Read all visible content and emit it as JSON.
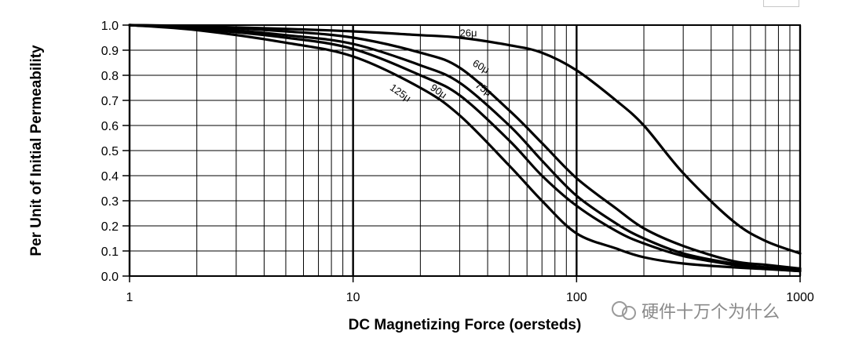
{
  "chart_data": {
    "type": "line",
    "x_scale": "log",
    "xlim": [
      1,
      1000
    ],
    "ylim": [
      0,
      1.0
    ],
    "xlabel": "DC Magnetizing Force (oersteds)",
    "ylabel": "Per Unit of Initial Permeability",
    "x_ticks": [
      {
        "value": 1,
        "label": "1"
      },
      {
        "value": 10,
        "label": "10"
      },
      {
        "value": 100,
        "label": "100"
      },
      {
        "value": 1000,
        "label": "1000"
      }
    ],
    "y_ticks": [
      {
        "value": 0.0,
        "label": "0.0"
      },
      {
        "value": 0.1,
        "label": "0.1"
      },
      {
        "value": 0.2,
        "label": "0.2"
      },
      {
        "value": 0.3,
        "label": "0.3"
      },
      {
        "value": 0.4,
        "label": "0.4"
      },
      {
        "value": 0.5,
        "label": "0.5"
      },
      {
        "value": 0.6,
        "label": "0.6"
      },
      {
        "value": 0.7,
        "label": "0.7"
      },
      {
        "value": 0.8,
        "label": "0.8"
      },
      {
        "value": 0.9,
        "label": "0.9"
      },
      {
        "value": 1.0,
        "label": "1.0"
      }
    ],
    "grid": true,
    "series": [
      {
        "name": "26μ",
        "label": "26μ",
        "label_at": {
          "x": 30,
          "y": 0.955
        },
        "label_angle": 0,
        "x": [
          1,
          2,
          5,
          10,
          20,
          30,
          50,
          70,
          100,
          150,
          200,
          300,
          500,
          700,
          1000
        ],
        "y": [
          1.0,
          0.995,
          0.985,
          0.975,
          0.96,
          0.95,
          0.92,
          0.89,
          0.82,
          0.7,
          0.6,
          0.41,
          0.22,
          0.14,
          0.09
        ]
      },
      {
        "name": "60μ",
        "label": "60μ",
        "label_at": {
          "x": 34,
          "y": 0.84
        },
        "label_angle": 30,
        "x": [
          1,
          2,
          5,
          10,
          20,
          30,
          50,
          70,
          100,
          150,
          200,
          300,
          500,
          700,
          1000
        ],
        "y": [
          1.0,
          0.995,
          0.975,
          0.95,
          0.89,
          0.83,
          0.66,
          0.53,
          0.39,
          0.27,
          0.19,
          0.12,
          0.06,
          0.045,
          0.03
        ]
      },
      {
        "name": "75μ",
        "label": "75μ",
        "label_at": {
          "x": 35,
          "y": 0.755
        },
        "label_angle": 35,
        "x": [
          1,
          2,
          5,
          10,
          20,
          30,
          50,
          70,
          100,
          150,
          200,
          300,
          500,
          700,
          1000
        ],
        "y": [
          1.0,
          0.99,
          0.96,
          0.925,
          0.84,
          0.77,
          0.6,
          0.46,
          0.32,
          0.21,
          0.15,
          0.09,
          0.05,
          0.035,
          0.025
        ]
      },
      {
        "name": "90μ",
        "label": "90μ",
        "label_at": {
          "x": 22,
          "y": 0.745
        },
        "label_angle": 35,
        "x": [
          1,
          2,
          5,
          10,
          20,
          30,
          50,
          70,
          100,
          150,
          200,
          300,
          500,
          700,
          1000
        ],
        "y": [
          1.0,
          0.985,
          0.95,
          0.905,
          0.8,
          0.72,
          0.54,
          0.4,
          0.28,
          0.18,
          0.13,
          0.08,
          0.045,
          0.03,
          0.02
        ]
      },
      {
        "name": "125μ",
        "label": "125μ",
        "label_at": {
          "x": 14.5,
          "y": 0.745
        },
        "label_angle": 35,
        "x": [
          1,
          2,
          5,
          10,
          20,
          30,
          50,
          70,
          100,
          150,
          200,
          300,
          500,
          700,
          1000
        ],
        "y": [
          1.0,
          0.98,
          0.93,
          0.875,
          0.75,
          0.64,
          0.44,
          0.3,
          0.17,
          0.11,
          0.075,
          0.05,
          0.035,
          0.028,
          0.02
        ]
      }
    ]
  },
  "watermark": {
    "text": "硬件十万个为什么"
  }
}
